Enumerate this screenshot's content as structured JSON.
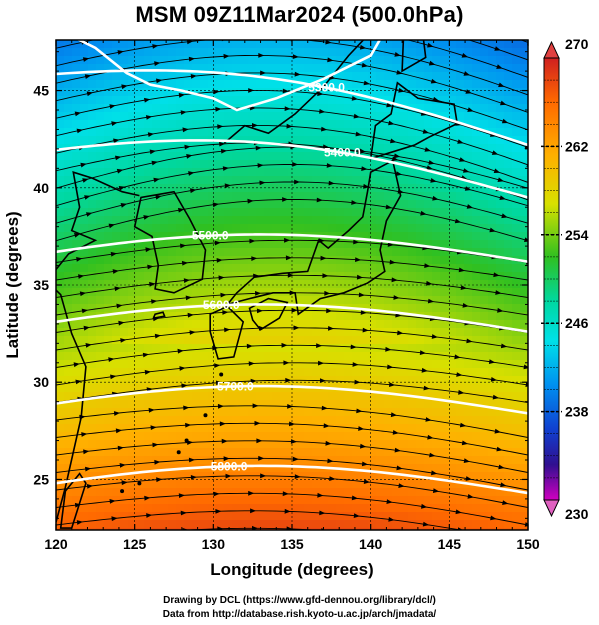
{
  "title": "MSM 09Z11Mar2024 (500.0hPa)",
  "credits": {
    "line1": "Drawing by DCL (https://www.gfd-dennou.org/library/dcl/)",
    "line2": "Data from http://database.rish.kyoto-u.ac.jp/arch/jmadata/"
  },
  "chart_data": {
    "type": "heatmap",
    "title": "MSM 09Z11Mar2024 (500.0hPa)",
    "xlabel": "Longitude (degrees)",
    "ylabel": "Latitude  (degrees)",
    "xlim": [
      120,
      150
    ],
    "ylim": [
      22.4,
      47.6
    ],
    "x_ticks": [
      "120",
      "125",
      "130",
      "135",
      "140",
      "145",
      "150"
    ],
    "y_ticks": [
      "25",
      "30",
      "35",
      "40",
      "45"
    ],
    "colorbar": {
      "min": 230,
      "max": 270,
      "tick_labels": [
        "270",
        "262",
        "254",
        "246",
        "238",
        "230"
      ]
    },
    "contours": [
      {
        "label": "5300.0"
      },
      {
        "label": "5400.0"
      },
      {
        "label": "5500.0"
      },
      {
        "label": "5600.0"
      },
      {
        "label": "5700.0"
      },
      {
        "label": "5800.0"
      }
    ],
    "overlay": "wind streamlines",
    "grid": true
  }
}
